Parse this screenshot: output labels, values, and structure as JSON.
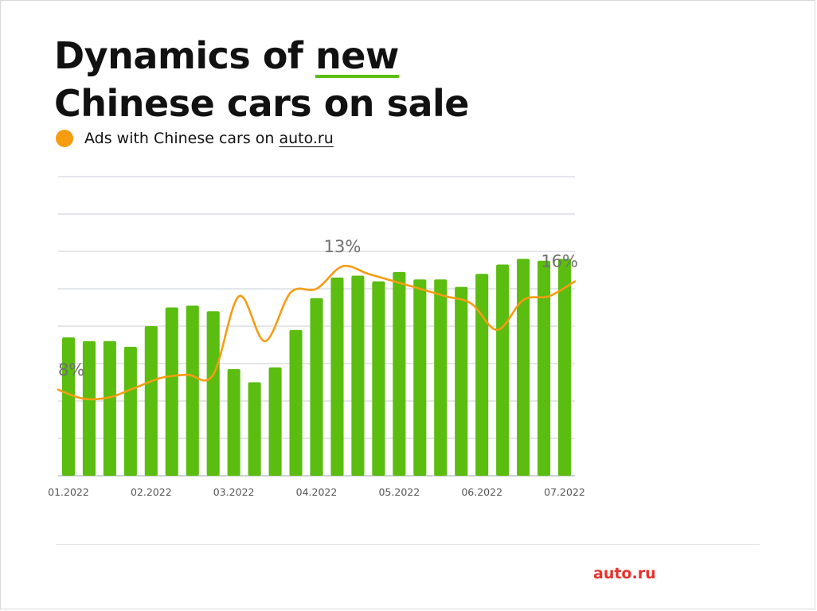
{
  "title_line1_pre": "Dynamics of ",
  "title_line1_highlight": "new",
  "title_line2": "Chinese cars on sale",
  "legend_label": "Ads with Chinese cars on",
  "legend_link": "auto.ru",
  "brand": "auto.ru",
  "colors": {
    "bar": "#5bbd0f",
    "line": "#f59c12",
    "highlight_underline": "#5bbd0f",
    "brand": "#e8312c"
  },
  "chart_data": {
    "type": "bar",
    "x_tick_labels": [
      "01.2022",
      "02.2022",
      "03.2022",
      "04.2022",
      "05.2022",
      "06.2022",
      "07.2022"
    ],
    "bars": [
      37,
      36,
      36,
      34.5,
      40,
      45,
      45.5,
      44,
      28.5,
      25,
      29,
      39,
      47.5,
      53,
      53.5,
      52,
      54.5,
      52.5,
      52.5,
      50.5,
      54,
      56.5,
      58,
      57.5,
      58
    ],
    "line_values": [
      11.5,
      10.3,
      10.5,
      11.8,
      13.1,
      13.5,
      13.5,
      24,
      18,
      24.5,
      25,
      28,
      27,
      26,
      25,
      24,
      23,
      19.5,
      23.5,
      24,
      26
    ],
    "line_annotations": [
      {
        "label": "8%"
      },
      {
        "label": "13%"
      },
      {
        "label": "16%"
      }
    ],
    "bar_ylim": [
      0,
      80
    ],
    "line_ylim": [
      0,
      40
    ],
    "grid": "horizontal",
    "legend": "top-left"
  }
}
